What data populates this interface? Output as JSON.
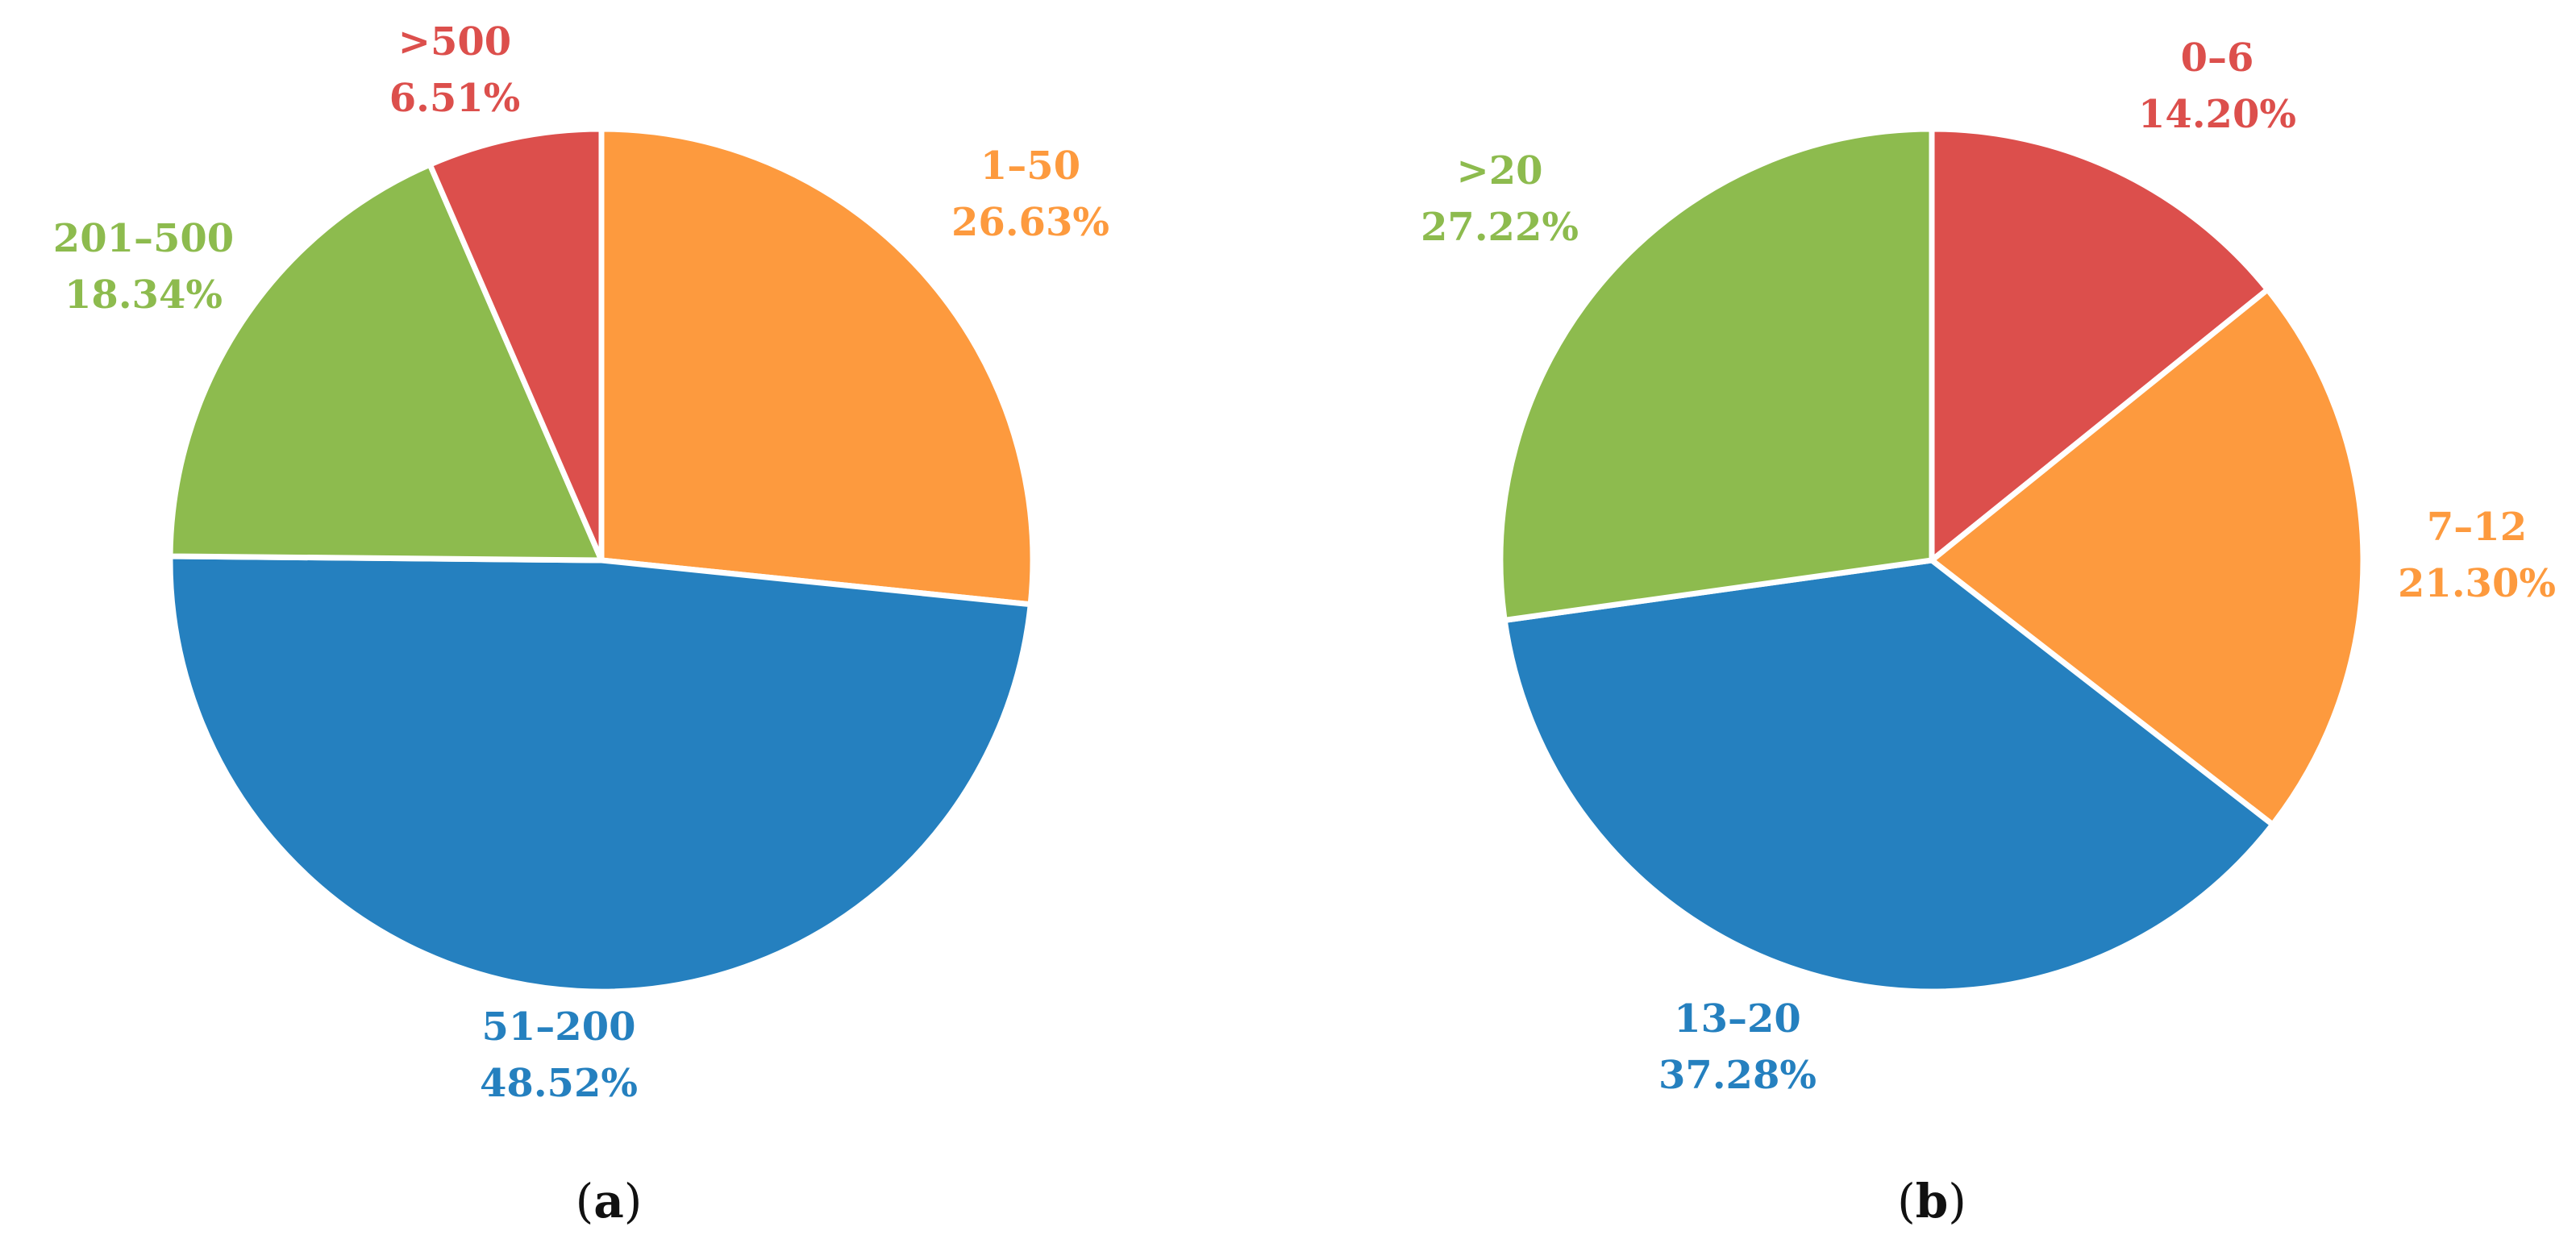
{
  "chart_data": [
    {
      "type": "pie",
      "panel_label": "a",
      "start_angle_deg": 0,
      "direction": "clockwise",
      "slices": [
        {
          "label": "1–50",
          "value": 26.63,
          "value_text": "26.63%",
          "color": "#FD9A3E"
        },
        {
          "label": "51–200",
          "value": 48.52,
          "value_text": "48.52%",
          "color": "#2580BF"
        },
        {
          "label": "201–500",
          "value": 18.34,
          "value_text": "18.34%",
          "color": "#8DBB4E"
        },
        {
          "label": ">500",
          "value": 6.51,
          "value_text": "6.51%",
          "color": "#DC4F4C"
        }
      ]
    },
    {
      "type": "pie",
      "panel_label": "b",
      "start_angle_deg": 0,
      "direction": "clockwise",
      "slices": [
        {
          "label": "0–6",
          "value": 14.2,
          "value_text": "14.20%",
          "color": "#DC4F4C"
        },
        {
          "label": "7–12",
          "value": 21.3,
          "value_text": "21.30%",
          "color": "#FD9A3E"
        },
        {
          "label": "13–20",
          "value": 37.28,
          "value_text": "37.28%",
          "color": "#2580BF"
        },
        {
          "label": ">20",
          "value": 27.22,
          "value_text": "27.22%",
          "color": "#8DBB4E"
        }
      ]
    }
  ]
}
